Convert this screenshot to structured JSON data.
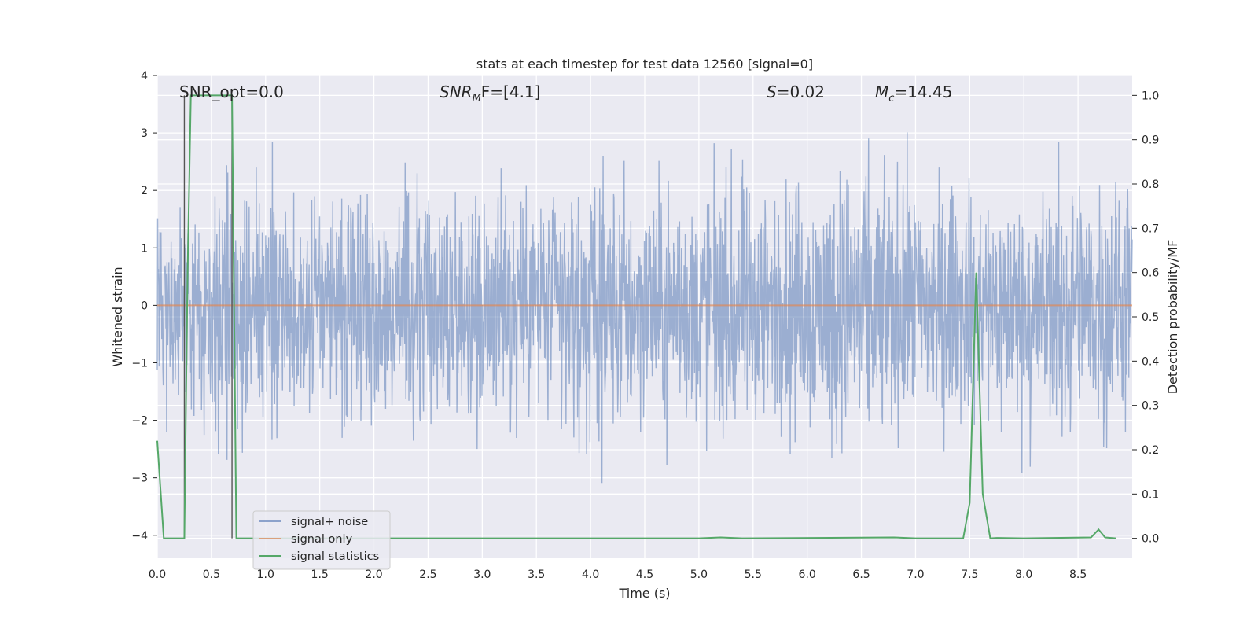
{
  "chart_data": {
    "type": "line",
    "title": "stats at each timestep for test data 12560 [signal=0]",
    "xlabel": "Time (s)",
    "ylabel": "Whitened strain",
    "ylabel_right": "Detection probability/MF",
    "xlim": [
      0.0,
      9.0
    ],
    "ylim": [
      -4.4,
      4.0
    ],
    "ylim_right": [
      -0.045,
      1.045
    ],
    "x_ticks": [
      "0.0",
      "0.5",
      "1.0",
      "1.5",
      "2.0",
      "2.5",
      "3.0",
      "3.5",
      "4.0",
      "4.5",
      "5.0",
      "5.5",
      "6.0",
      "6.5",
      "7.0",
      "7.5",
      "8.0",
      "8.5"
    ],
    "y_ticks": [
      "4",
      "3",
      "2",
      "1",
      "0",
      "−1",
      "−2",
      "−3",
      "−4"
    ],
    "y_right_ticks": [
      "1.0",
      "0.9",
      "0.8",
      "0.7",
      "0.6",
      "0.5",
      "0.4",
      "0.3",
      "0.2",
      "0.1",
      "0.0"
    ],
    "grid": true,
    "legend_position": "lower-left",
    "colors": {
      "noise": "#4c72b0",
      "signal": "#dd8452",
      "statistics": "#55a868",
      "markers": "#555555",
      "background": "#eaeaf2",
      "grid": "#ffffff"
    },
    "annotations": {
      "snr_opt": "SNR_opt=0.0",
      "snr_mf_base": "SNR",
      "snr_mf_sub": "M",
      "snr_mf_rest": "F=[4.1]",
      "s_italic": "S",
      "s_value": "=0.02",
      "mc_base": "M",
      "mc_sub": "c",
      "mc_value": "=14.45"
    },
    "marker_lines_x": [
      0.25,
      0.69
    ],
    "series": [
      {
        "name": "signal+ noise",
        "axis": "left",
        "envelope": {
          "note_x_step": 0.5,
          "x": [
            0.0,
            0.5,
            1.0,
            1.5,
            2.0,
            2.5,
            3.0,
            3.5,
            4.0,
            4.5,
            5.0,
            5.5,
            6.0,
            6.5,
            7.0,
            7.5,
            8.0,
            8.5,
            9.0
          ],
          "upper_typical": [
            2.1,
            2.3,
            2.2,
            2.4,
            2.2,
            2.3,
            2.4,
            2.5,
            2.3,
            2.4,
            2.3,
            2.4,
            2.5,
            2.7,
            2.4,
            2.3,
            2.3,
            2.5,
            2.4
          ],
          "lower_typical": [
            -1.9,
            -2.3,
            -2.4,
            -2.3,
            -2.4,
            -2.4,
            -2.5,
            -2.4,
            -2.6,
            -2.5,
            -2.4,
            -2.6,
            -2.5,
            -2.8,
            -2.4,
            -2.3,
            -2.5,
            -2.6,
            -2.5
          ]
        }
      },
      {
        "name": "signal only",
        "axis": "left",
        "x": [
          0.0,
          9.0
        ],
        "y": [
          0.0,
          0.0
        ]
      },
      {
        "name": "signal statistics",
        "axis": "right",
        "x": [
          0.0,
          0.06,
          0.25,
          0.28,
          0.31,
          0.69,
          0.73,
          0.75,
          0.8,
          0.85,
          1.5,
          3.0,
          5.0,
          5.2,
          5.4,
          6.8,
          7.0,
          7.44,
          7.5,
          7.56,
          7.62,
          7.69,
          7.75,
          8.0,
          8.62,
          8.69,
          8.75,
          8.85
        ],
        "y": [
          0.22,
          0.0,
          0.0,
          0.6,
          1.0,
          1.0,
          0.0,
          0.0,
          0.0,
          0.0,
          0.0,
          0.0,
          0.0,
          0.002,
          0.0,
          0.002,
          0.0,
          0.0,
          0.08,
          0.6,
          0.1,
          0.0,
          0.001,
          0.0,
          0.002,
          0.02,
          0.002,
          0.0
        ]
      }
    ]
  }
}
